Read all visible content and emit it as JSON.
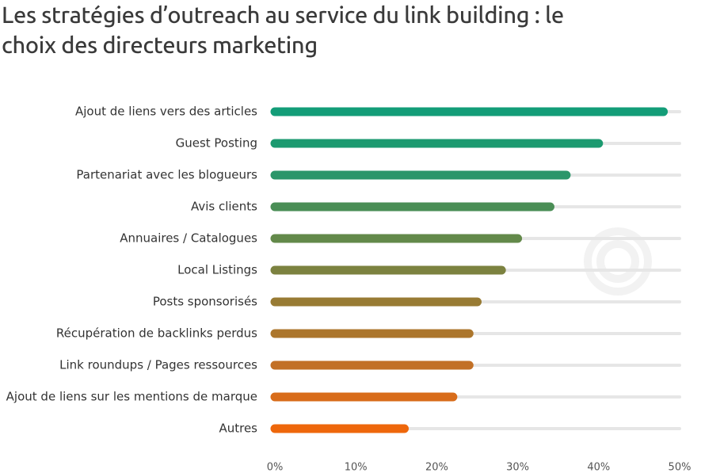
{
  "chart_data": {
    "type": "bar",
    "orientation": "horizontal",
    "title": "Les stratégies d’outreach au service du link building : le choix des directeurs marketing",
    "categories": [
      "Ajout de liens vers des articles",
      "Guest Posting",
      "Partenariat avec les blogueurs",
      "Avis clients",
      "Annuaires / Catalogues",
      "Local Listings",
      "Posts sponsorisés",
      "Récupération de backlinks perdus",
      "Link roundups / Pages ressources",
      "Ajout de liens sur les mentions de marque",
      "Autres"
    ],
    "values": [
      48,
      40,
      36,
      34,
      30,
      28,
      25,
      24,
      24,
      22,
      16
    ],
    "colors": [
      "#139d78",
      "#1c9a70",
      "#2b966a",
      "#4a8e56",
      "#63894a",
      "#7c8240",
      "#987b34",
      "#ac762c",
      "#c27026",
      "#d86c1a",
      "#ee670b"
    ],
    "xlim": [
      0,
      50
    ],
    "xticks": [
      {
        "value": 0,
        "label": "0%"
      },
      {
        "value": 10,
        "label": "10%"
      },
      {
        "value": 20,
        "label": "20%"
      },
      {
        "value": 30,
        "label": "30%"
      },
      {
        "value": 40,
        "label": "40%"
      },
      {
        "value": 50,
        "label": "50%"
      }
    ]
  }
}
